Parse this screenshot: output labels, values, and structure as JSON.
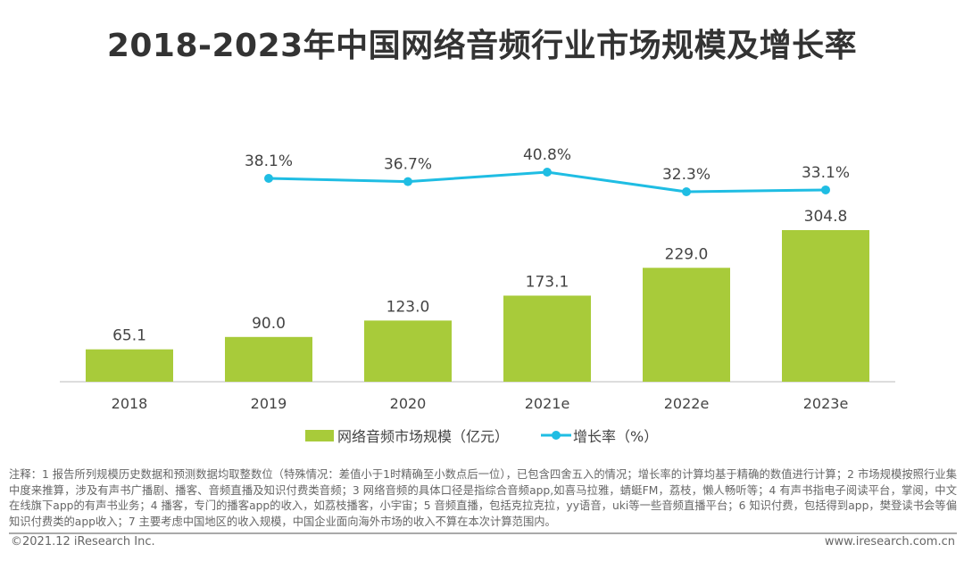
{
  "title": "2018-2023年中国网络音频行业市场规模及增长率",
  "chart_data": {
    "type": "bar+line",
    "title": "2018-2023年中国网络音频行业市场规模及增长率",
    "categories": [
      "2018",
      "2019",
      "2020",
      "2021e",
      "2022e",
      "2023e"
    ],
    "series": [
      {
        "name": "网络音频市场规模（亿元）",
        "type": "bar",
        "color": "#a8cb3a",
        "values": [
          65.1,
          90.0,
          123.0,
          173.1,
          229.0,
          304.8
        ],
        "labels": [
          "65.1",
          "90.0",
          "123.0",
          "173.1",
          "229.0",
          "304.8"
        ]
      },
      {
        "name": "增长率（%）",
        "type": "line",
        "color": "#1fbde3",
        "values": [
          null,
          38.1,
          36.7,
          40.8,
          32.3,
          33.1
        ],
        "labels": [
          "",
          "38.1%",
          "36.7%",
          "40.8%",
          "32.3%",
          "33.1%"
        ]
      }
    ],
    "legend_position": "bottom",
    "grid": false
  },
  "notes": "注释：1 报告所列规模历史数据和预测数据均取整数位（特殊情况：差值小于1时精确至小数点后一位），已包含四舍五入的情况；增长率的计算均基于精确的数值进行计算；2 市场规模按照行业集中度来推算，涉及有声书广播剧、播客、音频直播及知识付费类音频；3 网络音频的具体口径是指综合音频app,如喜马拉雅，蜻蜓FM，荔枝，懒人畅听等；4 有声书指电子阅读平台，掌阅，中文在线旗下app的有声书业务；4 播客，专门的播客app的收入，如荔枝播客，小宇宙；5 音频直播，包括克拉克拉，yy语音，uki等一些音频直播平台；6 知识付费，包括得到app，樊登读书会等偏知识付费类的app收入；7 主要考虑中国地区的收入规模，中国企业面向海外市场的收入不算在本次计算范围内。",
  "copyright": "©2021.12 iResearch Inc.",
  "website": "www.iresearch.com.cn"
}
